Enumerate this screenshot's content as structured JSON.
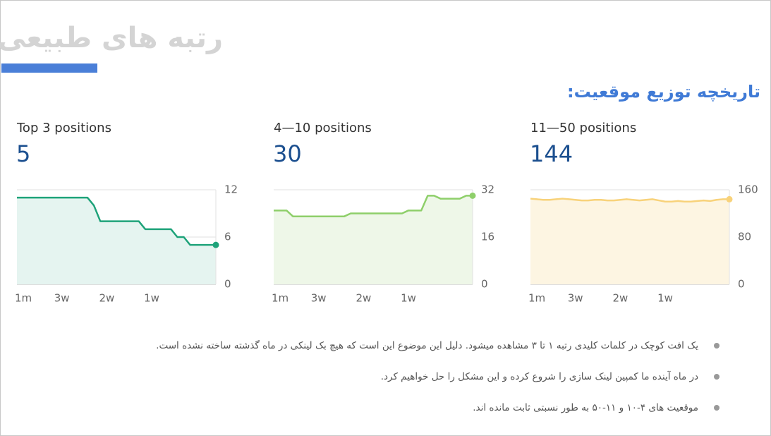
{
  "title": "رتبه های طبیعی",
  "subtitle": "تاریخچه توزیع موقعیت:",
  "chart_data": [
    {
      "type": "area",
      "title": "Top 3 positions",
      "total": 5,
      "color": "#1fa37a",
      "fill": "#e5f4f0",
      "categories": [
        null,
        "1m",
        null,
        null,
        null,
        null,
        null,
        "3w",
        null,
        null,
        null,
        null,
        null,
        null,
        "2w",
        null,
        null,
        null,
        null,
        null,
        null,
        "1w",
        null,
        null,
        null,
        null,
        null,
        null,
        null,
        null,
        null,
        null
      ],
      "values": [
        11,
        11,
        11,
        11,
        11,
        11,
        11,
        11,
        11,
        11,
        11,
        11,
        10,
        8,
        8,
        8,
        8,
        8,
        8,
        8,
        7,
        7,
        7,
        7,
        7,
        6,
        6,
        5,
        5,
        5,
        5,
        5
      ],
      "ylim": [
        0,
        12
      ],
      "yticks": [
        0,
        6,
        12
      ],
      "grid": true
    },
    {
      "type": "area",
      "title": "4—10 positions",
      "total": 30,
      "color": "#8ecf6a",
      "fill": "#eef7e8",
      "categories": [
        null,
        "1m",
        null,
        null,
        null,
        null,
        null,
        "3w",
        null,
        null,
        null,
        null,
        null,
        null,
        "2w",
        null,
        null,
        null,
        null,
        null,
        null,
        "1w",
        null,
        null,
        null,
        null,
        null,
        null,
        null,
        null,
        null,
        null
      ],
      "values": [
        25,
        25,
        25,
        23,
        23,
        23,
        23,
        23,
        23,
        23,
        23,
        23,
        24,
        24,
        24,
        24,
        24,
        24,
        24,
        24,
        24,
        25,
        25,
        25,
        30,
        30,
        29,
        29,
        29,
        29,
        30,
        30
      ],
      "ylim": [
        0,
        32
      ],
      "yticks": [
        0,
        16,
        32
      ],
      "grid": true
    },
    {
      "type": "area",
      "title": "11—50 positions",
      "total": 144,
      "color": "#f8d27a",
      "fill": "#fdf5e2",
      "categories": [
        null,
        "1m",
        null,
        null,
        null,
        null,
        null,
        "3w",
        null,
        null,
        null,
        null,
        null,
        null,
        "2w",
        null,
        null,
        null,
        null,
        null,
        null,
        "1w",
        null,
        null,
        null,
        null,
        null,
        null,
        null,
        null,
        null,
        null
      ],
      "values": [
        145,
        144,
        143,
        143,
        144,
        145,
        144,
        143,
        142,
        142,
        143,
        143,
        142,
        142,
        143,
        144,
        143,
        142,
        143,
        144,
        142,
        140,
        140,
        141,
        140,
        140,
        141,
        142,
        141,
        143,
        144,
        144
      ],
      "ylim": [
        0,
        160
      ],
      "yticks": [
        0,
        80,
        160
      ],
      "grid": true
    }
  ],
  "bullets": [
    "یک افت کوچک در کلمات کلیدی رتبه ۱ تا ۳ مشاهده میشود. دلیل این موضوع این است که هیچ بک لینکی در ماه گذشته ساخته نشده است.",
    "در ماه آینده ما کمپین لینک سازی را شروع کرده و این مشکل را حل خواهیم کرد.",
    "موقعیت های ۴-۱۰ و ۱۱-۵۰ به طور نسبتی ثابت مانده اند."
  ]
}
